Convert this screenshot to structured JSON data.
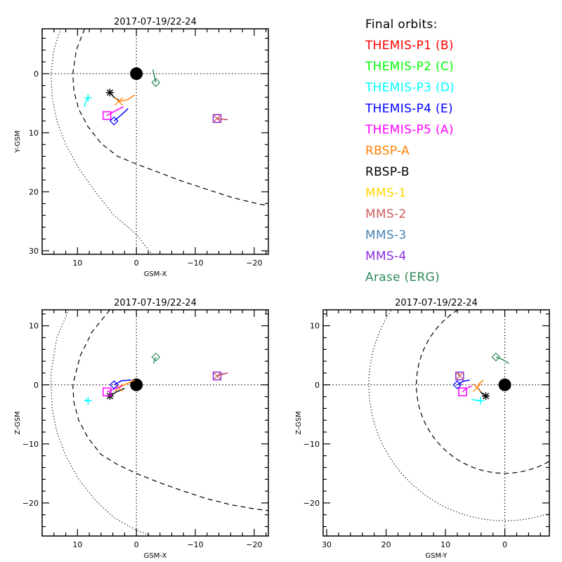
{
  "legend_title": "Final orbits:",
  "chart_data": {
    "type": "scatter",
    "title": "Final orbits",
    "series": [
      {
        "name": "THEMIS-P1 (B)",
        "color": "#ff0000",
        "symbol": "none"
      },
      {
        "name": "THEMIS-P2 (C)",
        "color": "#00ff00",
        "symbol": "none"
      },
      {
        "name": "THEMIS-P3 (D)",
        "color": "#00ffff",
        "symbol": "plus"
      },
      {
        "name": "THEMIS-P4 (E)",
        "color": "#0000ff",
        "symbol": "diamond"
      },
      {
        "name": "THEMIS-P5 (A)",
        "color": "#ff00ff",
        "symbol": "square"
      },
      {
        "name": "RBSP-A",
        "color": "#ff8000",
        "symbol": "x"
      },
      {
        "name": "RBSP-B",
        "color": "#000000",
        "symbol": "asterisk"
      },
      {
        "name": "MMS-1",
        "color": "#ffd700",
        "symbol": "none"
      },
      {
        "name": "MMS-2",
        "color": "#cd5c5c",
        "symbol": "x"
      },
      {
        "name": "MMS-3",
        "color": "#4682b4",
        "symbol": "plus"
      },
      {
        "name": "MMS-4",
        "color": "#8a2be2",
        "symbol": "square"
      },
      {
        "name": "Arase (ERG)",
        "color": "#2e8b57",
        "symbol": "diamond"
      }
    ],
    "panels": [
      {
        "id": "xy",
        "title": "2017-07-19/22-24",
        "xlabel": "GSM-X",
        "ylabel": "Y-GSM",
        "xlim": [
          16,
          -22.4
        ],
        "ylim": [
          -7.6,
          30.6
        ],
        "xticks": [
          10,
          0,
          -10,
          -20
        ],
        "yticks": [
          0,
          10,
          20,
          30
        ],
        "earth": [
          0,
          0
        ],
        "magnetopause": [
          [
            8.8,
            -7.6
          ],
          [
            10.2,
            -4
          ],
          [
            10.8,
            0
          ],
          [
            10.6,
            3
          ],
          [
            9.8,
            6
          ],
          [
            8.2,
            9
          ],
          [
            6,
            11.8
          ],
          [
            3.2,
            14
          ],
          [
            0,
            15.3
          ],
          [
            -4,
            16.8
          ],
          [
            -8,
            18.3
          ],
          [
            -12,
            19.6
          ],
          [
            -16,
            20.9
          ],
          [
            -20,
            21.9
          ],
          [
            -22.4,
            22.4
          ]
        ],
        "bowshock": [
          [
            12.9,
            -7.6
          ],
          [
            14,
            -4
          ],
          [
            14.5,
            0
          ],
          [
            14.3,
            4
          ],
          [
            13.5,
            8
          ],
          [
            12,
            12
          ],
          [
            9.8,
            16
          ],
          [
            7,
            20
          ],
          [
            3.8,
            24
          ],
          [
            0,
            27.2
          ],
          [
            -2.6,
            30.6
          ]
        ],
        "tracks": [
          {
            "series": "THEMIS-P3 (D)",
            "points": [
              [
                8.9,
                5.6
              ],
              [
                8.5,
                4.6
              ],
              [
                8.2,
                4.1
              ]
            ]
          },
          {
            "series": "RBSP-B",
            "points": [
              [
                3.0,
                4.5
              ],
              [
                3.8,
                4.0
              ],
              [
                4.5,
                3.2
              ]
            ]
          },
          {
            "series": "RBSP-A",
            "points": [
              [
                0.3,
                3.6
              ],
              [
                1.5,
                4.4
              ],
              [
                3.0,
                4.7
              ]
            ]
          },
          {
            "series": "THEMIS-P5 (A)",
            "points": [
              [
                2.2,
                5.6
              ],
              [
                3.6,
                6.3
              ],
              [
                5.0,
                7.1
              ]
            ]
          },
          {
            "series": "THEMIS-P4 (E)",
            "points": [
              [
                1.4,
                5.9
              ],
              [
                2.7,
                7.1
              ],
              [
                3.8,
                8.0
              ]
            ]
          },
          {
            "series": "Arase (ERG)",
            "points": [
              [
                -2.8,
                -0.7
              ],
              [
                -3.1,
                0.6
              ],
              [
                -3.3,
                1.5
              ]
            ]
          },
          {
            "series": "MMS-4",
            "points": [
              [
                -15.5,
                7.8
              ],
              [
                -14.5,
                7.7
              ],
              [
                -13.7,
                7.6
              ]
            ]
          },
          {
            "series": "MMS-2",
            "points": [
              [
                -15.5,
                7.8
              ],
              [
                -13.7,
                7.6
              ]
            ]
          }
        ]
      },
      {
        "id": "xz",
        "title": "2017-07-19/22-24",
        "xlabel": "GSM-X",
        "ylabel": "Z-GSM",
        "xlim": [
          16,
          -22.4
        ],
        "ylim": [
          12.7,
          -25.6
        ],
        "xticks": [
          10,
          0,
          -10,
          -20
        ],
        "yticks": [
          10,
          0,
          -10,
          -20
        ],
        "earth": [
          0,
          0
        ],
        "magnetopause": [
          [
            4.5,
            12.7
          ],
          [
            7.5,
            9
          ],
          [
            9.5,
            5
          ],
          [
            10.8,
            0
          ],
          [
            10.6,
            -3
          ],
          [
            9.8,
            -6
          ],
          [
            8.2,
            -9
          ],
          [
            6,
            -11.8
          ],
          [
            3.2,
            -13.5
          ],
          [
            0,
            -15
          ],
          [
            -4,
            -16.6
          ],
          [
            -8,
            -18
          ],
          [
            -12,
            -19.3
          ],
          [
            -16,
            -20.3
          ],
          [
            -20,
            -21
          ],
          [
            -22.4,
            -21.3
          ]
        ],
        "bowshock": [
          [
            11.5,
            12.7
          ],
          [
            13.5,
            8
          ],
          [
            14.5,
            2
          ],
          [
            14.5,
            0
          ],
          [
            14.3,
            -4
          ],
          [
            13.5,
            -8
          ],
          [
            12,
            -12
          ],
          [
            9.8,
            -16
          ],
          [
            7,
            -19.5
          ],
          [
            3.8,
            -22.5
          ],
          [
            0,
            -24.6
          ],
          [
            -2.6,
            -25.6
          ]
        ],
        "tracks": [
          {
            "series": "THEMIS-P3 (D)",
            "points": [
              [
                8.7,
                -2.5
              ],
              [
                8.2,
                -2.7
              ]
            ]
          },
          {
            "series": "RBSP-B",
            "points": [
              [
                2.0,
                -0.6
              ],
              [
                3.4,
                -1.2
              ],
              [
                4.5,
                -1.9
              ]
            ]
          },
          {
            "series": "RBSP-A",
            "points": [
              [
                0.3,
                0.8
              ],
              [
                1.6,
                0.2
              ],
              [
                3.0,
                -0.5
              ]
            ]
          },
          {
            "series": "THEMIS-P5 (A)",
            "points": [
              [
                2.4,
                -0.2
              ],
              [
                3.8,
                -0.7
              ],
              [
                5.0,
                -1.2
              ]
            ]
          },
          {
            "series": "THEMIS-P4 (E)",
            "points": [
              [
                0.9,
                0.8
              ],
              [
                2.5,
                0.7
              ],
              [
                3.8,
                0.0
              ]
            ]
          },
          {
            "series": "Arase (ERG)",
            "points": [
              [
                -2.9,
                3.6
              ],
              [
                -3.1,
                4.2
              ],
              [
                -3.3,
                4.7
              ]
            ]
          },
          {
            "series": "MMS-4",
            "points": [
              [
                -15.5,
                2.0
              ],
              [
                -14.5,
                1.8
              ],
              [
                -13.7,
                1.5
              ]
            ]
          },
          {
            "series": "MMS-2",
            "points": [
              [
                -15.5,
                2.0
              ],
              [
                -13.7,
                1.5
              ]
            ]
          }
        ]
      },
      {
        "id": "yz",
        "title": "2017-07-19/22-24",
        "xlabel": "GSM-Y",
        "ylabel": "Z-GSM",
        "xlim": [
          30.6,
          -7.5
        ],
        "ylim": [
          12.7,
          -25.6
        ],
        "xticks": [
          30,
          20,
          10,
          0
        ],
        "yticks": [
          10,
          0,
          -10,
          -20
        ],
        "earth": [
          0,
          0
        ],
        "magnetopause_radius": 14.9,
        "bowshock_radius": 22.9,
        "tracks": [
          {
            "series": "THEMIS-P3 (D)",
            "points": [
              [
                5.6,
                -2.5
              ],
              [
                4.8,
                -2.6
              ],
              [
                4.1,
                -2.7
              ]
            ]
          },
          {
            "series": "RBSP-B",
            "points": [
              [
                4.5,
                -0.6
              ],
              [
                3.9,
                -1.4
              ],
              [
                3.2,
                -1.9
              ]
            ]
          },
          {
            "series": "RBSP-A",
            "points": [
              [
                3.6,
                0.8
              ],
              [
                4.3,
                0.2
              ],
              [
                4.7,
                -0.5
              ]
            ]
          },
          {
            "series": "THEMIS-P5 (A)",
            "points": [
              [
                5.6,
                -0.2
              ],
              [
                6.5,
                -0.6
              ],
              [
                7.1,
                -1.2
              ]
            ]
          },
          {
            "series": "THEMIS-P4 (E)",
            "points": [
              [
                5.9,
                0.8
              ],
              [
                7.0,
                0.6
              ],
              [
                8.0,
                0.0
              ]
            ]
          },
          {
            "series": "Arase (ERG)",
            "points": [
              [
                -0.7,
                3.6
              ],
              [
                0.4,
                4.3
              ],
              [
                1.5,
                4.7
              ]
            ]
          },
          {
            "series": "MMS-4",
            "points": [
              [
                7.8,
                2.0
              ],
              [
                7.6,
                1.5
              ]
            ]
          },
          {
            "series": "MMS-2",
            "points": [
              [
                7.8,
                2.0
              ],
              [
                7.6,
                1.5
              ]
            ]
          }
        ]
      }
    ]
  }
}
